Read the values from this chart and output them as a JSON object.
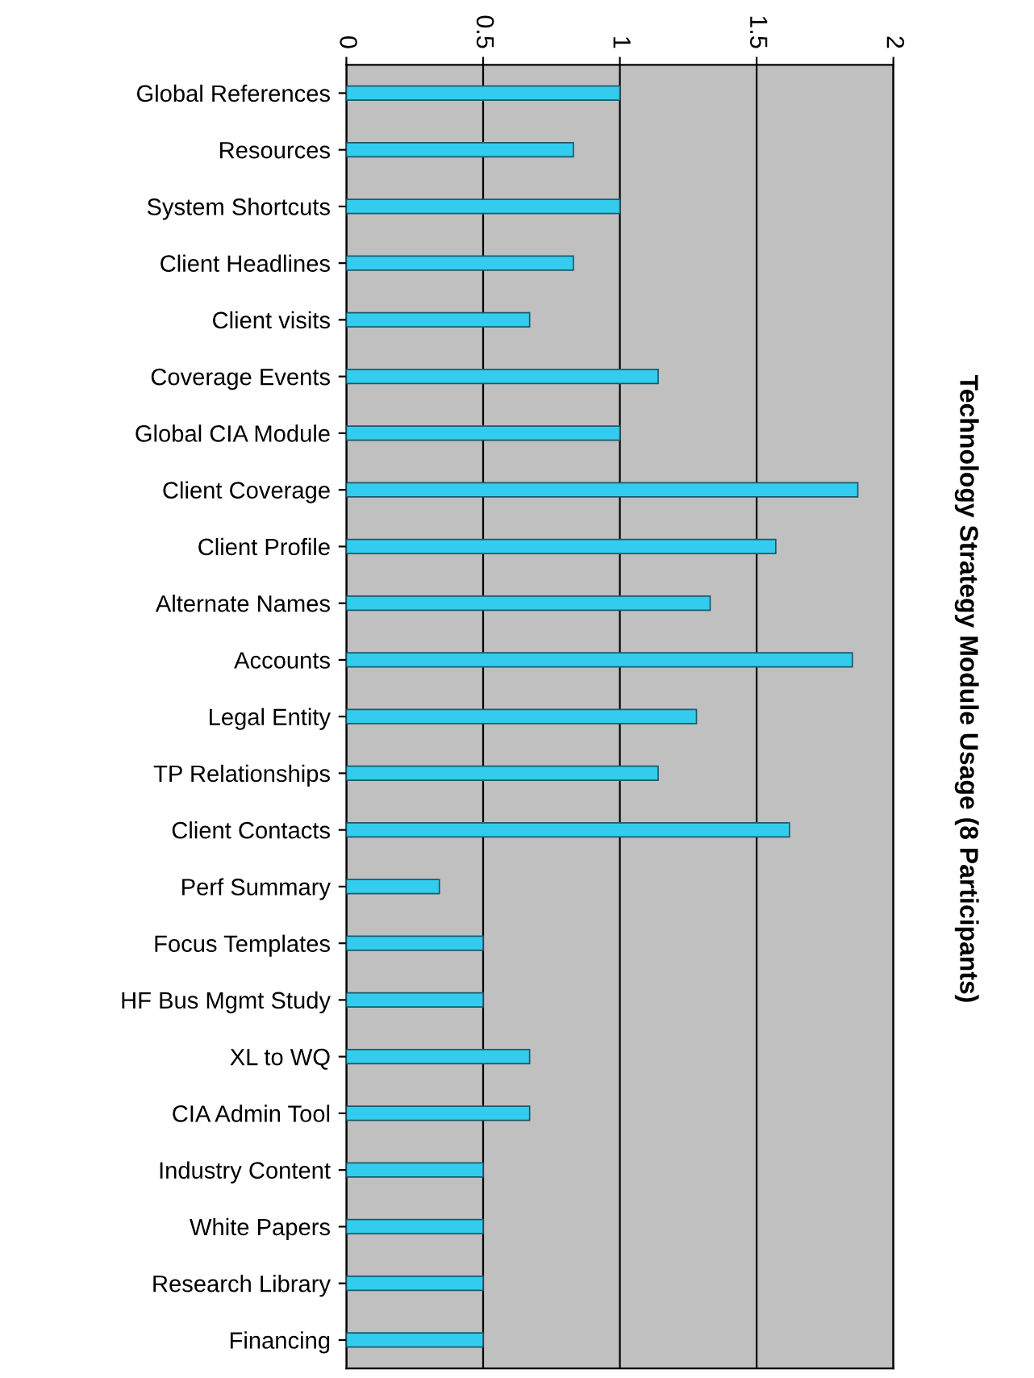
{
  "chart_data": {
    "type": "bar",
    "orientation": "horizontal",
    "title": "Technology Strategy Module Usage (8 Participants)",
    "categories": [
      "Global References",
      "Resources",
      "System Shortcuts",
      "Client Headlines",
      "Client visits",
      "Coverage Events",
      "Global CIA Module",
      "Client Coverage",
      "Client Profile",
      "Alternate Names",
      "Accounts",
      "Legal Entity",
      "TP Relationships",
      "Client Contacts",
      "Perf Summary",
      "Focus Templates",
      "HF Bus Mgmt Study",
      "XL to WQ",
      "CIA Admin Tool",
      "Industry Content",
      "White Papers",
      "Research Library",
      "Financing"
    ],
    "values": [
      1,
      0.83,
      1,
      0.83,
      0.67,
      1.14,
      1,
      1.87,
      1.57,
      1.33,
      1.85,
      1.28,
      1.14,
      1.62,
      0.34,
      0.5,
      0.5,
      0.67,
      0.67,
      0.5,
      0.5,
      0.5,
      0.5
    ],
    "color": "#33ccee",
    "xlim": [
      0,
      2
    ],
    "xticks": [
      0,
      0.5,
      1,
      1.5,
      2
    ],
    "grid": "x"
  }
}
